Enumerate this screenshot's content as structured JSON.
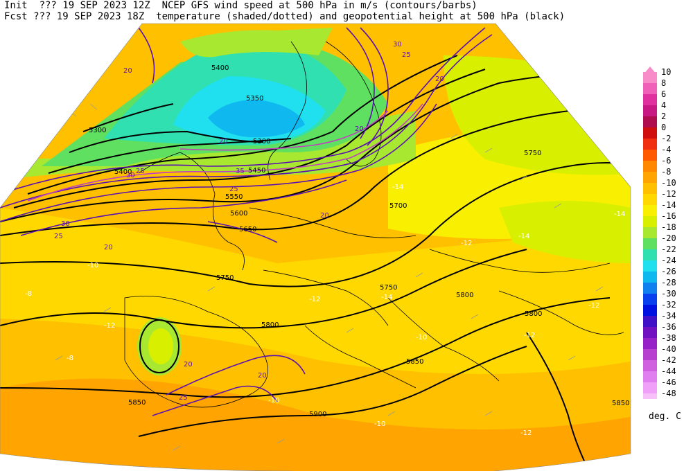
{
  "header": {
    "line1": "Init  ??? 19 SEP 2023 12Z  NCEP GFS wind speed at 500 hPa in m/s (contours/barbs)",
    "line2": "Fcst ??? 19 SEP 2023 18Z  temperature (shaded/dotted) and geopotential height at 500 hPa (black)"
  },
  "legend": {
    "units": "deg. C",
    "items": [
      {
        "label": "10",
        "color": "#f78cc8"
      },
      {
        "label": "8",
        "color": "#f060b8"
      },
      {
        "label": "6",
        "color": "#e030a0"
      },
      {
        "label": "4",
        "color": "#c81884"
      },
      {
        "label": "2",
        "color": "#b00c50"
      },
      {
        "label": "0",
        "color": "#d01010"
      },
      {
        "label": "-2",
        "color": "#f03010"
      },
      {
        "label": "-4",
        "color": "#ff5a00"
      },
      {
        "label": "-6",
        "color": "#ff8800"
      },
      {
        "label": "-8",
        "color": "#ffa400"
      },
      {
        "label": "-10",
        "color": "#ffc000"
      },
      {
        "label": "-12",
        "color": "#ffd800"
      },
      {
        "label": "-14",
        "color": "#f8f000"
      },
      {
        "label": "-16",
        "color": "#d8f000"
      },
      {
        "label": "-18",
        "color": "#a8e830"
      },
      {
        "label": "-20",
        "color": "#60e060"
      },
      {
        "label": "-22",
        "color": "#30e0b0"
      },
      {
        "label": "-24",
        "color": "#20e0f0"
      },
      {
        "label": "-26",
        "color": "#10b8f0"
      },
      {
        "label": "-28",
        "color": "#1080f0"
      },
      {
        "label": "-30",
        "color": "#0840f0"
      },
      {
        "label": "-32",
        "color": "#0010e0"
      },
      {
        "label": "-34",
        "color": "#4010c8"
      },
      {
        "label": "-36",
        "color": "#7010c0"
      },
      {
        "label": "-38",
        "color": "#9820c8"
      },
      {
        "label": "-40",
        "color": "#b840d0"
      },
      {
        "label": "-42",
        "color": "#d060e0"
      },
      {
        "label": "-44",
        "color": "#e080f0"
      },
      {
        "label": "-46",
        "color": "#f0a0f8"
      },
      {
        "label": "-48",
        "color": "#f8c0f8"
      }
    ]
  },
  "map": {
    "height_labels": [
      "5400",
      "5350",
      "5300",
      "5300",
      "5450",
      "5400",
      "5550",
      "5600",
      "5650",
      "5700",
      "5750",
      "5750",
      "5800",
      "5750",
      "5800",
      "5850",
      "5850",
      "5900",
      "5850",
      "5800"
    ],
    "temp_labels": [
      "-10",
      "-12",
      "-12",
      "-14",
      "-14",
      "-12",
      "-12",
      "-8",
      "-8",
      "-10",
      "-10",
      "-12",
      "-10",
      "-14",
      "-12",
      "-14"
    ],
    "wind_labels": [
      "20",
      "20",
      "25",
      "30",
      "35",
      "30",
      "25",
      "20",
      "20",
      "25",
      "30",
      "20",
      "25",
      "20",
      "20",
      "25",
      "20"
    ]
  }
}
